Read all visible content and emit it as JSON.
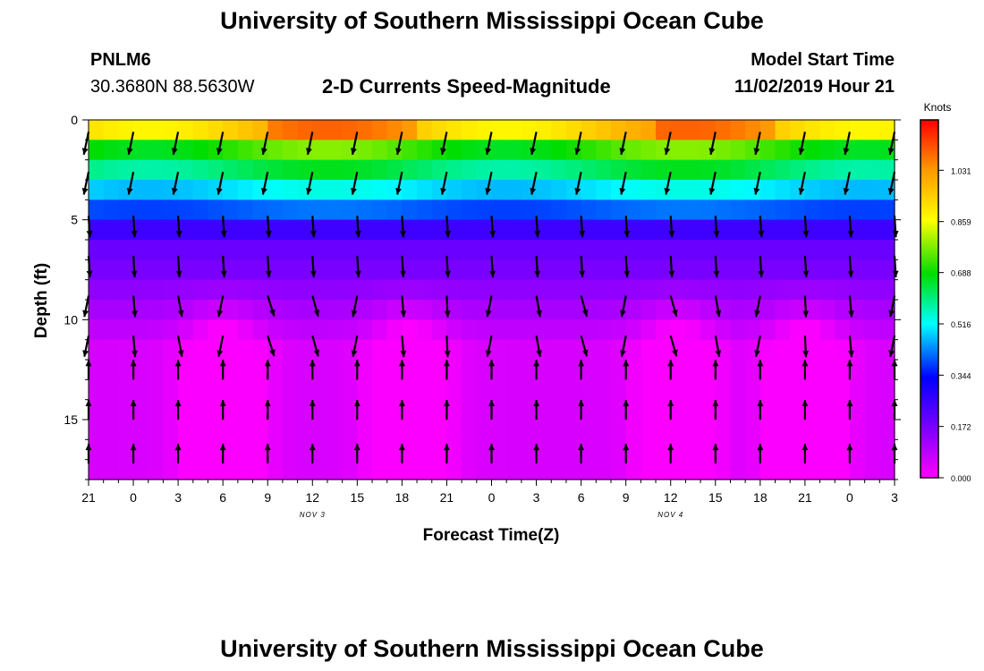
{
  "titles": {
    "top": "University of Southern Mississippi Ocean Cube",
    "bottom": "University of Southern Mississippi Ocean Cube"
  },
  "station": {
    "id": "PNLM6",
    "coords": "30.3680N 88.5630W"
  },
  "model": {
    "start_label": "Model Start Time",
    "start_value": "11/02/2019 Hour 21"
  },
  "chart_data": {
    "type": "heatmap",
    "title": "2-D Currents Speed-Magnitude",
    "xlabel": "Forecast Time(Z)",
    "ylabel": "Depth (ft)",
    "x_ticks": [
      "21",
      "0",
      "3",
      "6",
      "9",
      "12",
      "15",
      "18",
      "21",
      "0",
      "3",
      "6",
      "9",
      "12",
      "15",
      "18",
      "21",
      "0",
      "3"
    ],
    "x_range_hours": [
      0,
      54
    ],
    "y_ticks": [
      "0",
      "5",
      "10",
      "15"
    ],
    "y_range_ft": [
      0,
      18
    ],
    "date_labels": [
      {
        "text": "NOV 3",
        "tick_index": 5
      },
      {
        "text": "NOV 4",
        "tick_index": 13
      }
    ],
    "colorbar": {
      "unit": "Knots",
      "min": 0,
      "max": 1.2,
      "ticks": [
        "0.000",
        "0.172",
        "0.344",
        "0.516",
        "0.688",
        "0.859",
        "1.031"
      ]
    },
    "arrow_columns": [
      0,
      3,
      6,
      9,
      12,
      15,
      18,
      21,
      24,
      27,
      30,
      33,
      36,
      39,
      42,
      45,
      48,
      51,
      54
    ],
    "arrow_rows_ft": [
      0.6,
      2.6,
      4.8,
      6.8,
      8.8,
      10.8,
      13.0,
      15.0,
      17.2
    ],
    "colors": {
      "axis": "#000000",
      "arrow": "#000000",
      "background": "#ffffff"
    }
  }
}
